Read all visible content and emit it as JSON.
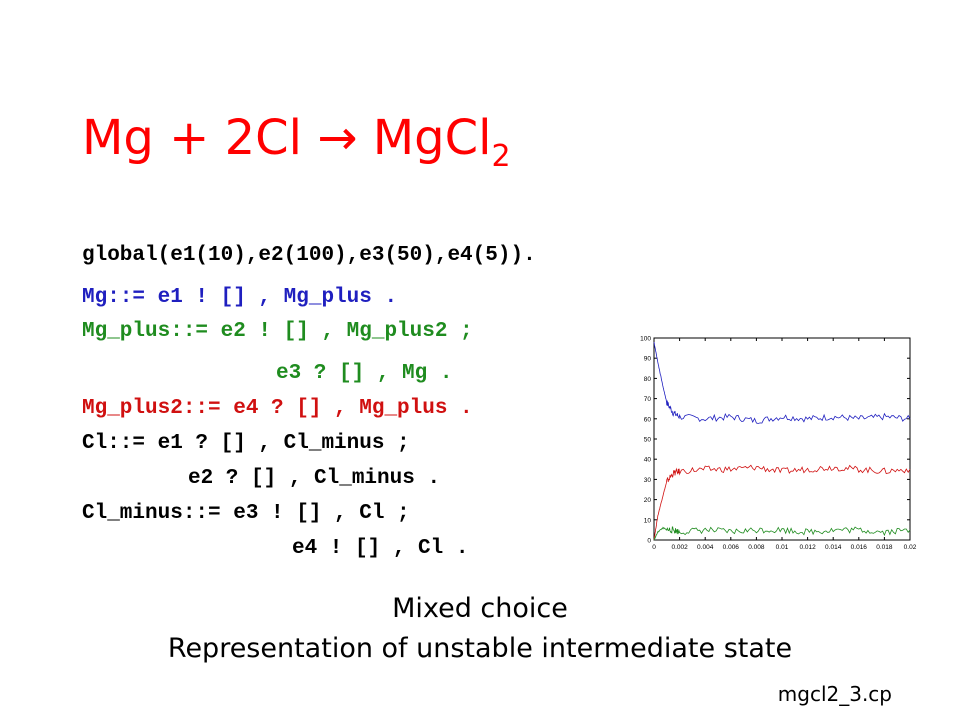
{
  "title": {
    "main": "Mg + 2Cl → MgCl",
    "subscript": "2"
  },
  "code": [
    {
      "text": "global(e1(10),e2(100),e3(50),e4(5)).",
      "color": "#000000"
    },
    {
      "text": "Mg::= e1 ! [] , Mg_plus .",
      "color": "#1f1fbf"
    },
    {
      "text": "Mg_plus::= e2 ! [] , Mg_plus2 ;",
      "color": "#1f8c1f"
    },
    {
      "text": "e3 ? [] , Mg .",
      "color": "#1f8c1f"
    },
    {
      "text": "Mg_plus2::= e4 ? [] , Mg_plus .",
      "color": "#d01010"
    },
    {
      "text": "Cl::= e1 ? [] , Cl_minus ;",
      "color": "#000000"
    },
    {
      "text": "e2 ? [] , Cl_minus .",
      "color": "#000000"
    },
    {
      "text": "Cl_minus::= e3 ! [] , Cl ;",
      "color": "#000000"
    },
    {
      "text": "e4 ! [] , Cl .",
      "color": "#000000"
    }
  ],
  "captions": {
    "line1": "Mixed choice",
    "line2": "Representation of unstable intermediate state"
  },
  "filename": "mgcl2_3.cp",
  "chart_data": {
    "type": "line",
    "xlim": [
      0,
      0.02
    ],
    "ylim": [
      0,
      100
    ],
    "xticks": [
      "0",
      "0.002",
      "0.004",
      "0.006",
      "0.008",
      "0.01",
      "0.012",
      "0.014",
      "0.016",
      "0.018",
      "0.02"
    ],
    "yticks": [
      "0",
      "10",
      "20",
      "30",
      "40",
      "50",
      "60",
      "70",
      "80",
      "90",
      "100"
    ],
    "grid": false,
    "series": [
      {
        "color": "#1f1fbf",
        "x": [
          0,
          0.0003,
          0.0007,
          0.001,
          0.0015,
          0.002,
          0.004,
          0.006,
          0.008,
          0.01,
          0.012,
          0.014,
          0.016,
          0.018,
          0.02
        ],
        "y": [
          98,
          88,
          76,
          68,
          63,
          61,
          60,
          61,
          59,
          61,
          60,
          61,
          60,
          61,
          60
        ]
      },
      {
        "color": "#d01010",
        "x": [
          0,
          0.0003,
          0.0007,
          0.001,
          0.0015,
          0.002,
          0.004,
          0.006,
          0.008,
          0.01,
          0.012,
          0.014,
          0.016,
          0.018,
          0.02
        ],
        "y": [
          0,
          12,
          22,
          29,
          33,
          34,
          35,
          35,
          36,
          34,
          35,
          36,
          35,
          34,
          35
        ]
      },
      {
        "color": "#1f8c1f",
        "x": [
          0,
          0.0003,
          0.0007,
          0.001,
          0.0015,
          0.002,
          0.004,
          0.006,
          0.008,
          0.01,
          0.012,
          0.014,
          0.016,
          0.018,
          0.02
        ],
        "y": [
          0,
          4,
          6,
          5,
          5,
          4,
          5,
          4,
          5,
          5,
          4,
          5,
          5,
          4,
          5
        ]
      }
    ]
  }
}
